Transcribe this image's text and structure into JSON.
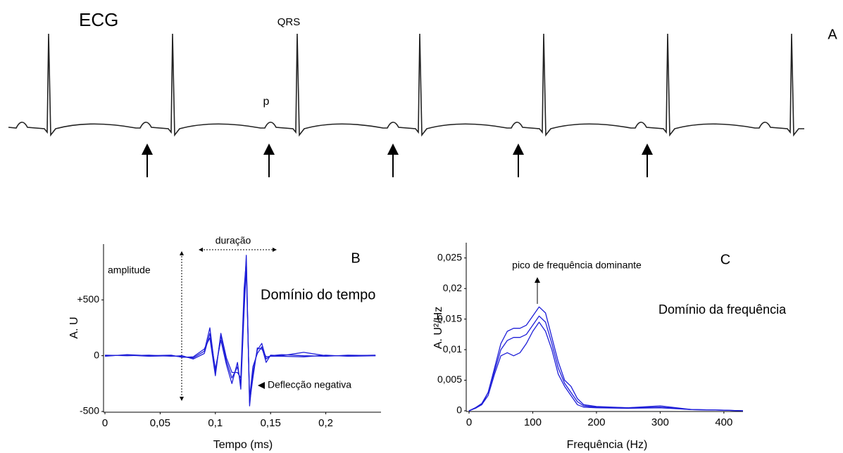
{
  "ecg_panel": {
    "title": "ECG",
    "qrs_label": "QRS",
    "p_label": "p",
    "panel_label": "A"
  },
  "chart_data": [
    {
      "type": "line",
      "title": "Domínio do tempo",
      "panel_label": "B",
      "x_label": "Tempo (ms)",
      "y_label": "A. U",
      "annotations": [
        "duração",
        "amplitude",
        "Deflecção negativa"
      ],
      "xlim": [
        0,
        0.25
      ],
      "xticks": [
        0,
        {
          "value": 0.05,
          "label": "0,05"
        },
        {
          "value": 0.1,
          "label": "0,1"
        },
        {
          "value": 0.15,
          "label": "0,15"
        },
        {
          "value": 0.2,
          "label": "0,2"
        }
      ],
      "ylim": [
        -500,
        1000
      ],
      "yticks": [
        -500,
        0,
        {
          "value": 500,
          "label": "+500"
        }
      ],
      "grid": false,
      "x": [
        0,
        0.02,
        0.04,
        0.06,
        0.07,
        0.08,
        0.09,
        0.095,
        0.1,
        0.105,
        0.11,
        0.115,
        0.12,
        0.123,
        0.126,
        0.128,
        0.131,
        0.134,
        0.138,
        0.142,
        0.146,
        0.15,
        0.16,
        0.18,
        0.2,
        0.22,
        0.245
      ],
      "series": [
        {
          "color": "#1e1ed8",
          "values": [
            0,
            5,
            -5,
            0,
            -10,
            -20,
            40,
            250,
            -150,
            180,
            -50,
            -200,
            -100,
            -250,
            500,
            900,
            -450,
            -150,
            50,
            110,
            -30,
            0,
            10,
            0,
            -5,
            5,
            0
          ]
        },
        {
          "color": "#1e1ed8",
          "values": [
            5,
            0,
            5,
            -5,
            0,
            -30,
            20,
            200,
            -120,
            140,
            -80,
            -250,
            -60,
            -300,
            400,
            780,
            -380,
            -100,
            20,
            80,
            -60,
            5,
            0,
            30,
            0,
            0,
            5
          ]
        },
        {
          "color": "#1e1ed8",
          "values": [
            -5,
            10,
            0,
            5,
            -15,
            -10,
            60,
            160,
            -180,
            200,
            -20,
            -150,
            -150,
            -200,
            600,
            850,
            -420,
            -200,
            70,
            60,
            -10,
            -5,
            -5,
            -10,
            5,
            -5,
            0
          ]
        }
      ]
    },
    {
      "type": "line",
      "title": "Domínio da frequência",
      "panel_label": "C",
      "x_label": "Frequência (Hz)",
      "y_label": "A. U²/Hz",
      "annotations": [
        "pico de frequência dominante"
      ],
      "xlim": [
        0,
        430
      ],
      "xticks": [
        0,
        100,
        200,
        300,
        400
      ],
      "ylim": [
        0,
        0.0275
      ],
      "yticks": [
        0,
        {
          "value": 0.005,
          "label": "0,005"
        },
        {
          "value": 0.01,
          "label": "0,01"
        },
        {
          "value": 0.015,
          "label": "0,015"
        },
        {
          "value": 0.02,
          "label": "0,02"
        },
        {
          "value": 0.025,
          "label": "0,025"
        }
      ],
      "grid": false,
      "x": [
        0,
        10,
        20,
        30,
        40,
        50,
        60,
        70,
        80,
        90,
        100,
        110,
        120,
        130,
        140,
        150,
        160,
        170,
        180,
        200,
        250,
        300,
        350,
        400,
        430
      ],
      "series": [
        {
          "color": "#1e1ed8",
          "values": [
            0,
            0.0005,
            0.001,
            0.003,
            0.007,
            0.011,
            0.013,
            0.0135,
            0.0135,
            0.014,
            0.0155,
            0.017,
            0.016,
            0.012,
            0.008,
            0.005,
            0.004,
            0.002,
            0.001,
            0.0007,
            0.0005,
            0.0008,
            0.0002,
            0.0001,
            0
          ]
        },
        {
          "color": "#1e1ed8",
          "values": [
            0,
            0.0004,
            0.001,
            0.0025,
            0.006,
            0.009,
            0.0095,
            0.009,
            0.0095,
            0.011,
            0.013,
            0.0145,
            0.013,
            0.01,
            0.006,
            0.004,
            0.0025,
            0.001,
            0.0006,
            0.0005,
            0.0004,
            0.0005,
            0.0002,
            0.0001,
            0
          ]
        },
        {
          "color": "#1e1ed8",
          "values": [
            0,
            0.0005,
            0.0012,
            0.003,
            0.0065,
            0.01,
            0.0115,
            0.012,
            0.012,
            0.0125,
            0.014,
            0.0155,
            0.0145,
            0.011,
            0.007,
            0.0045,
            0.003,
            0.0015,
            0.0008,
            0.0006,
            0.0005,
            0.0006,
            0.0002,
            0.0001,
            0
          ]
        }
      ]
    }
  ]
}
